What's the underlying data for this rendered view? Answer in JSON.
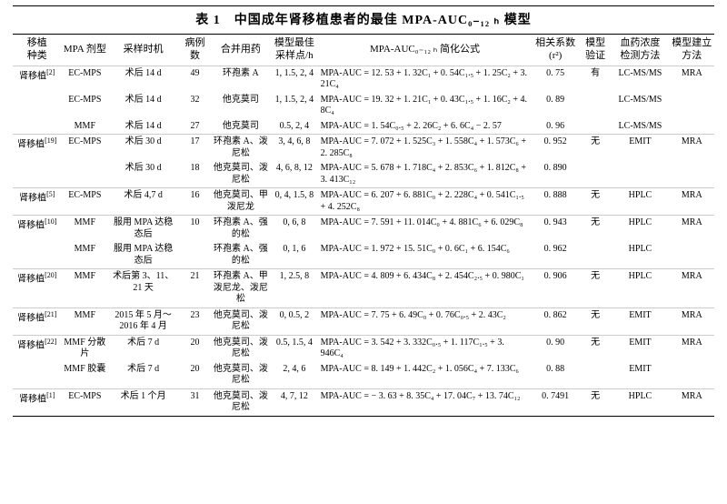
{
  "title": "表 1　中国成年肾移植患者的最佳 MPA-AUC₀₋₁₂ ₕ 模型",
  "columns": [
    "移植\n种类",
    "MPA 剂型",
    "采样时机",
    "病例数",
    "合并用药",
    "模型最佳\n采样点/h",
    "MPA-AUC₀₋₁₂ ₕ 简化公式",
    "相关系数\n(r²)",
    "模型\n验证",
    "血药浓度\n检测方法",
    "模型建立\n方法"
  ],
  "col_widths": [
    "50",
    "48",
    "72",
    "34",
    "60",
    "50",
    "218",
    "50",
    "32",
    "60",
    "46"
  ],
  "rows": [
    {
      "sep": true,
      "c": [
        "肾移植[2]",
        "EC-MPS",
        "术后 14 d",
        "49",
        "环孢素 A",
        "1, 1.5, 2, 4",
        "MPA-AUC = 12. 53 + 1. 32C₁ + 0. 54C₁.₅ + 1. 25C₂ + 3. 21C₄",
        "0. 75",
        "有",
        "LC-MS/MS",
        "MRA"
      ]
    },
    {
      "c": [
        "",
        "EC-MPS",
        "术后 14 d",
        "32",
        "他克莫司",
        "1, 1.5, 2, 4",
        "MPA-AUC = 19. 32 + 1. 21C₁ + 0. 43C₁.₅ + 1. 16C₂ + 4. 8C₄",
        "0. 89",
        "",
        "LC-MS/MS",
        ""
      ]
    },
    {
      "c": [
        "",
        "MMF",
        "术后 14 d",
        "27",
        "他克莫司",
        "0.5, 2, 4",
        "MPA-AUC = 1. 54C₀.₅ + 2. 26C₂ + 6. 6C₄ − 2. 57",
        "0. 96",
        "",
        "LC-MS/MS",
        ""
      ]
    },
    {
      "sep": true,
      "c": [
        "肾移植[19]",
        "EC-MPS",
        "术后 30 d",
        "17",
        "环孢素 A、泼尼松",
        "3, 4, 6, 8",
        "MPA-AUC = 7. 072 + 1. 525C₃ + 1. 558C₄ + 1. 573C₆ + 2. 285C₈",
        "0. 952",
        "无",
        "EMIT",
        "MRA"
      ]
    },
    {
      "c": [
        "",
        "",
        "术后 30 d",
        "18",
        "他克莫司、泼尼松",
        "4, 6, 8, 12",
        "MPA-AUC = 5. 678 + 1. 718C₄ + 2. 853C₆ + 1. 812C₈ + 3. 413C₁₂",
        "0. 890",
        "",
        "",
        ""
      ]
    },
    {
      "sep": true,
      "c": [
        "肾移植[5]",
        "EC-MPS",
        "术后 4,7 d",
        "16",
        "他克莫司、甲泼尼龙",
        "0, 4, 1.5, 8",
        "MPA-AUC = 6. 207 + 6. 881C₀ + 2. 228C₄ + 0. 541C₁.₅ + 4. 252C₈",
        "0. 888",
        "无",
        "HPLC",
        "MRA"
      ]
    },
    {
      "sep": true,
      "c": [
        "肾移植[10]",
        "MMF",
        "服用 MPA 达稳态后",
        "10",
        "环孢素 A、强的松",
        "0, 6, 8",
        "MPA-AUC = 7. 591 + 11. 014C₀ + 4. 881C₆ + 6. 029C₈",
        "0. 943",
        "无",
        "HPLC",
        "MRA"
      ]
    },
    {
      "c": [
        "",
        "MMF",
        "服用 MPA 达稳态后",
        "",
        "环孢素 A、强的松",
        "0, 1, 6",
        "MPA-AUC = 1. 972 + 15. 51C₀ + 0. 6C₁ + 6. 154C₆",
        "0. 962",
        "",
        "HPLC",
        ""
      ]
    },
    {
      "sep": true,
      "c": [
        "肾移植[20]",
        "MMF",
        "术后第 3、11、21 天",
        "21",
        "环孢素 A、甲泼尼龙、泼尼松",
        "1, 2.5, 8",
        "MPA-AUC = 4. 809 + 6. 434C₈ + 2. 454C₂.₅ + 0. 980C₁",
        "0. 906",
        "无",
        "HPLC",
        "MRA"
      ]
    },
    {
      "sep": true,
      "c": [
        "肾移植[21]",
        "MMF",
        "2015 年 5 月～2016 年 4 月",
        "23",
        "他克莫司、泼尼松",
        "0, 0.5, 2",
        "MPA-AUC = 7. 75 + 6. 49C₀ + 0. 76C₀.₅ + 2. 43C₂",
        "0. 862",
        "无",
        "EMIT",
        "MRA"
      ]
    },
    {
      "sep": true,
      "c": [
        "肾移植[22]",
        "MMF 分散片",
        "术后 7 d",
        "20",
        "他克莫司、泼尼松",
        "0.5, 1.5, 4",
        "MPA-AUC = 3. 542 + 3. 332C₀.₅ + 1. 117C₁.₅ + 3. 946C₄",
        "0. 90",
        "无",
        "EMIT",
        "MRA"
      ]
    },
    {
      "c": [
        "",
        "MMF 胶囊",
        "术后 7 d",
        "20",
        "他克莫司、泼尼松",
        "2, 4, 6",
        "MPA-AUC = 8. 149 + 1. 442C₂ + 1. 056C₄ + 7. 133C₆",
        "0. 88",
        "",
        "EMIT",
        ""
      ]
    },
    {
      "sep": true,
      "c": [
        "肾移植[1]",
        "EC-MPS",
        "术后 1 个月",
        "31",
        "他克莫司、泼尼松",
        "4, 7, 12",
        "MPA-AUC = − 3. 63 + 8. 35C₄ + 17. 04C₇ + 13. 74C₁₂",
        "0. 7491",
        "无",
        "HPLC",
        "MRA"
      ]
    }
  ]
}
